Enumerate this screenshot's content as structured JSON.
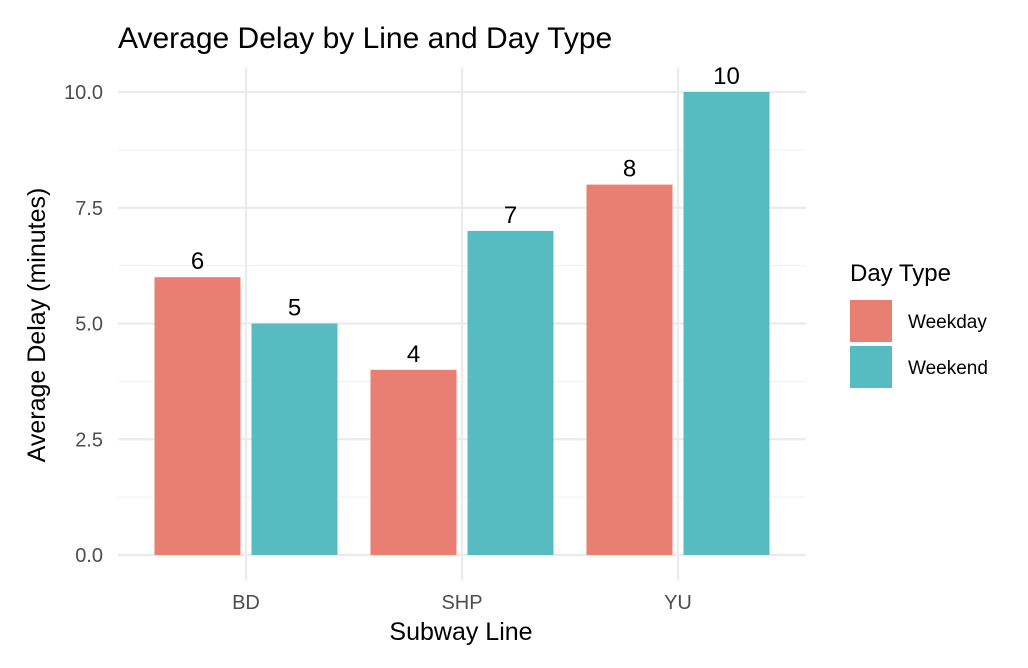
{
  "chart_data": {
    "type": "bar",
    "title": "Average Delay by Line and Day Type",
    "xlabel": "Subway Line",
    "ylabel": "Average Delay (minutes)",
    "categories": [
      "BD",
      "SHP",
      "YU"
    ],
    "series": [
      {
        "name": "Weekday",
        "color": "#E87F72",
        "values": [
          6,
          4,
          8
        ]
      },
      {
        "name": "Weekend",
        "color": "#56BCC2",
        "values": [
          5,
          7,
          10
        ]
      }
    ],
    "ylim": [
      0,
      10.25
    ],
    "yticks": [
      0,
      2.5,
      5,
      7.5,
      10
    ],
    "ytick_labels": [
      "0.0",
      "2.5",
      "5.0",
      "7.5",
      "10.0"
    ],
    "grid": true,
    "legend": {
      "title": "Day Type",
      "placement": "right"
    }
  }
}
